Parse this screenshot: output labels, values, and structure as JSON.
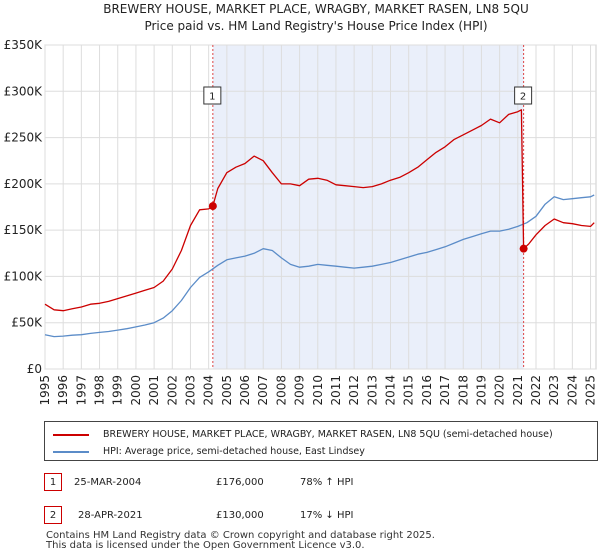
{
  "chart_data": {
    "type": "line",
    "title": "BREWERY HOUSE, MARKET PLACE, WRAGBY, MARKET RASEN, LN8 5QU",
    "subtitle": "Price paid vs. HM Land Registry's House Price Index (HPI)",
    "xlim": [
      1995,
      2025.3
    ],
    "ylim": [
      0,
      350000
    ],
    "x_ticks": [
      "1995",
      "1996",
      "1997",
      "1998",
      "1999",
      "2000",
      "2001",
      "2002",
      "2003",
      "2004",
      "2005",
      "2006",
      "2007",
      "2008",
      "2009",
      "2010",
      "2011",
      "2012",
      "2013",
      "2014",
      "2015",
      "2016",
      "2017",
      "2018",
      "2019",
      "2020",
      "2021",
      "2022",
      "2023",
      "2024",
      "2025"
    ],
    "y_ticks": [
      {
        "value": 0,
        "label": "£0"
      },
      {
        "value": 50000,
        "label": "£50K"
      },
      {
        "value": 100000,
        "label": "£100K"
      },
      {
        "value": 150000,
        "label": "£150K"
      },
      {
        "value": 200000,
        "label": "£200K"
      },
      {
        "value": 250000,
        "label": "£250K"
      },
      {
        "value": 300000,
        "label": "£300K"
      },
      {
        "value": 350000,
        "label": "£350K"
      }
    ],
    "shaded_region": [
      2004.23,
      2021.32
    ],
    "series": [
      {
        "name": "BREWERY HOUSE, MARKET PLACE, WRAGBY, MARKET RASEN, LN8 5QU (semi-detached house)",
        "color": "#cc0000",
        "x": [
          1995.0,
          1995.5,
          1996.0,
          1996.5,
          1997.0,
          1997.5,
          1998.0,
          1998.5,
          1999.0,
          1999.5,
          2000.0,
          2000.5,
          2001.0,
          2001.5,
          2002.0,
          2002.5,
          2003.0,
          2003.5,
          2004.0,
          2004.23,
          2004.5,
          2005.0,
          2005.5,
          2006.0,
          2006.5,
          2007.0,
          2007.5,
          2008.0,
          2008.5,
          2009.0,
          2009.5,
          2010.0,
          2010.5,
          2011.0,
          2011.5,
          2012.0,
          2012.5,
          2013.0,
          2013.5,
          2014.0,
          2014.5,
          2015.0,
          2015.5,
          2016.0,
          2016.5,
          2017.0,
          2017.5,
          2018.0,
          2018.5,
          2019.0,
          2019.5,
          2020.0,
          2020.5,
          2021.0,
          2021.2,
          2021.32,
          2021.6,
          2022.0,
          2022.5,
          2023.0,
          2023.5,
          2024.0,
          2024.5,
          2025.0,
          2025.2
        ],
        "values": [
          70000,
          64000,
          63000,
          65000,
          67000,
          70000,
          71000,
          73000,
          76000,
          79000,
          82000,
          85000,
          88000,
          95000,
          108000,
          128000,
          155000,
          172000,
          173000,
          176000,
          195000,
          212000,
          218000,
          222000,
          230000,
          225000,
          212000,
          200000,
          200000,
          198000,
          205000,
          206000,
          204000,
          199000,
          198000,
          197000,
          196000,
          197000,
          200000,
          204000,
          207000,
          212000,
          218000,
          226000,
          234000,
          240000,
          248000,
          253000,
          258000,
          263000,
          270000,
          266000,
          275000,
          278000,
          280000,
          130000,
          135000,
          145000,
          155000,
          162000,
          158000,
          157000,
          155000,
          154000,
          158000
        ]
      },
      {
        "name": "HPI: Average price, semi-detached house, East Lindsey",
        "color": "#5b8cc8",
        "x": [
          1995.0,
          1995.5,
          1996.0,
          1996.5,
          1997.0,
          1997.5,
          1998.0,
          1998.5,
          1999.0,
          1999.5,
          2000.0,
          2000.5,
          2001.0,
          2001.5,
          2002.0,
          2002.5,
          2003.0,
          2003.5,
          2004.0,
          2004.5,
          2005.0,
          2005.5,
          2006.0,
          2006.5,
          2007.0,
          2007.5,
          2008.0,
          2008.5,
          2009.0,
          2009.5,
          2010.0,
          2010.5,
          2011.0,
          2011.5,
          2012.0,
          2012.5,
          2013.0,
          2013.5,
          2014.0,
          2014.5,
          2015.0,
          2015.5,
          2016.0,
          2016.5,
          2017.0,
          2017.5,
          2018.0,
          2018.5,
          2019.0,
          2019.5,
          2020.0,
          2020.5,
          2021.0,
          2021.5,
          2022.0,
          2022.5,
          2023.0,
          2023.5,
          2024.0,
          2024.5,
          2025.0,
          2025.2
        ],
        "values": [
          37000,
          35000,
          35500,
          36500,
          37000,
          38500,
          39500,
          40500,
          42000,
          43500,
          45500,
          47500,
          50000,
          55000,
          63000,
          74000,
          88000,
          99000,
          105000,
          112000,
          118000,
          120000,
          122000,
          125000,
          130000,
          128000,
          120000,
          113000,
          110000,
          111000,
          113000,
          112000,
          111000,
          110000,
          109000,
          110000,
          111000,
          113000,
          115000,
          118000,
          121000,
          124000,
          126000,
          129000,
          132000,
          136000,
          140000,
          143000,
          146000,
          149000,
          149000,
          151000,
          154000,
          158000,
          165000,
          178000,
          186000,
          183000,
          184000,
          185000,
          186000,
          188000
        ]
      }
    ],
    "annotations": [
      {
        "label": "1",
        "x": 2004.23,
        "y": 176000
      },
      {
        "label": "2",
        "x": 2021.32,
        "y": 130000
      }
    ]
  },
  "legend": [
    {
      "label": "BREWERY HOUSE, MARKET PLACE, WRAGBY, MARKET RASEN, LN8 5QU (semi-detached house)",
      "color": "#cc0000"
    },
    {
      "label": "HPI: Average price, semi-detached house, East Lindsey",
      "color": "#5b8cc8"
    }
  ],
  "transactions": [
    {
      "badge": "1",
      "date": "25-MAR-2004",
      "price": "£176,000",
      "hpi": "78% ↑ HPI"
    },
    {
      "badge": "2",
      "date": "28-APR-2021",
      "price": "£130,000",
      "hpi": "17% ↓ HPI"
    }
  ],
  "footer": {
    "line1": "Contains HM Land Registry data © Crown copyright and database right 2025.",
    "line2": "This data is licensed under the Open Government Licence v3.0."
  }
}
